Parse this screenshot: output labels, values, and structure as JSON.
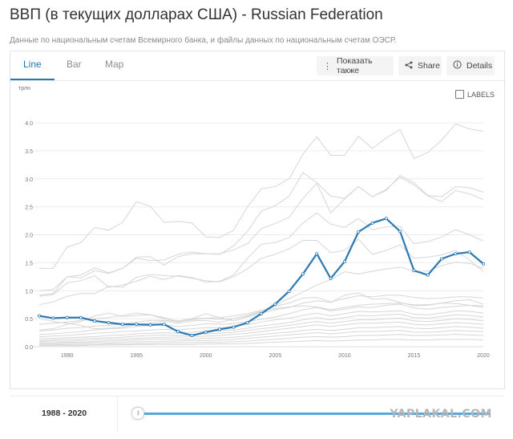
{
  "header": {
    "title": "ВВП (в текущих долларах США) - Russian Federation",
    "subtitle": "Данные по национальным счетам Всемирного банка, и файлы данных по национальным счетам ОЭСР."
  },
  "tabs": [
    {
      "label": "Line",
      "active": true
    },
    {
      "label": "Bar",
      "active": false
    },
    {
      "label": "Map",
      "active": false
    }
  ],
  "toolbar": {
    "show_also_label": "Показать также",
    "share_label": "Share",
    "details_label": "Details"
  },
  "labels_toggle": "LABELS",
  "unit_label": "трлн",
  "range": {
    "label": "1988 - 2020"
  },
  "watermark": "YAPLAKAL.COM",
  "colors": {
    "highlight": "#2a7ab6",
    "background_lines": "#d6d6d6",
    "accent": "#1f77b4",
    "slider": "#5aa8d8"
  },
  "chart_data": {
    "type": "line",
    "title": "ВВП (в текущих долларах США) - Russian Federation",
    "ylabel": "трлн",
    "xlim": [
      1988,
      2020
    ],
    "ylim": [
      0,
      4.0
    ],
    "x_ticks": [
      1990,
      1995,
      2000,
      2005,
      2010,
      2015,
      2020
    ],
    "y_ticks": [
      "0.0",
      "0.5",
      "1.0",
      "1.5",
      "2.0",
      "2.5",
      "3.0",
      "3.5",
      "4.0"
    ],
    "grid": "horizontal",
    "highlight_series": {
      "name": "Russian Federation",
      "x": [
        1988,
        1989,
        1990,
        1991,
        1992,
        1993,
        1994,
        1995,
        1996,
        1997,
        1998,
        1999,
        2000,
        2001,
        2002,
        2003,
        2004,
        2005,
        2006,
        2007,
        2008,
        2009,
        2010,
        2011,
        2012,
        2013,
        2014,
        2015,
        2016,
        2017,
        2018,
        2019,
        2020
      ],
      "values": [
        0.55,
        0.51,
        0.52,
        0.52,
        0.46,
        0.43,
        0.4,
        0.4,
        0.39,
        0.4,
        0.27,
        0.2,
        0.26,
        0.31,
        0.35,
        0.43,
        0.59,
        0.76,
        0.99,
        1.3,
        1.66,
        1.22,
        1.52,
        2.05,
        2.21,
        2.29,
        2.06,
        1.36,
        1.28,
        1.57,
        1.66,
        1.69,
        1.48
      ]
    },
    "background_series": [
      {
        "values": [
          1.4,
          1.4,
          1.78,
          1.86,
          2.13,
          2.08,
          2.22,
          2.59,
          2.51,
          2.22,
          2.24,
          2.21,
          1.96,
          1.95,
          2.08,
          2.5,
          2.82,
          2.86,
          3.0,
          3.44,
          3.75,
          3.42,
          3.42,
          3.76,
          3.54,
          3.73,
          3.88,
          3.36,
          3.47,
          3.69,
          3.98,
          3.89,
          3.85
        ]
      },
      {
        "values": [
          1.0,
          1.02,
          1.25,
          1.28,
          1.41,
          1.32,
          1.4,
          1.6,
          1.61,
          1.46,
          1.61,
          1.66,
          1.66,
          1.65,
          1.8,
          2.06,
          2.42,
          2.52,
          2.69,
          3.11,
          2.93,
          2.69,
          2.65,
          2.86,
          2.68,
          2.79,
          3.06,
          2.93,
          2.7,
          2.68,
          2.86,
          2.84,
          2.76
        ]
      },
      {
        "values": [
          0.92,
          0.95,
          1.25,
          1.23,
          1.36,
          1.31,
          1.4,
          1.58,
          1.54,
          1.55,
          1.65,
          1.69,
          1.66,
          1.66,
          1.73,
          1.84,
          2.11,
          2.2,
          2.31,
          2.65,
          2.92,
          2.39,
          2.64,
          2.86,
          2.68,
          2.81,
          3.03,
          2.89,
          2.69,
          2.59,
          2.79,
          2.73,
          2.63
        ]
      },
      {
        "values": [
          0.9,
          0.93,
          1.14,
          1.18,
          1.27,
          1.06,
          1.1,
          1.17,
          1.26,
          1.2,
          1.27,
          1.24,
          1.15,
          1.17,
          1.28,
          1.58,
          1.83,
          1.86,
          1.95,
          2.21,
          2.39,
          2.19,
          2.13,
          2.29,
          2.09,
          2.14,
          2.15,
          1.84,
          1.88,
          1.96,
          2.09,
          2.0,
          1.89
        ]
      },
      {
        "values": [
          0.75,
          0.8,
          0.9,
          0.95,
          0.95,
          1.08,
          1.06,
          1.24,
          1.29,
          1.27,
          1.26,
          1.22,
          1.18,
          1.16,
          1.25,
          1.39,
          1.58,
          1.65,
          1.75,
          1.9,
          1.9,
          1.68,
          1.72,
          1.92,
          1.65,
          1.72,
          1.82,
          1.58,
          1.6,
          1.64,
          1.72,
          1.55,
          1.34
        ]
      },
      {
        "values": [
          0.51,
          0.45,
          0.42,
          0.38,
          0.32,
          0.33,
          0.35,
          0.4,
          0.42,
          0.46,
          0.42,
          0.46,
          0.47,
          0.43,
          0.5,
          0.56,
          0.64,
          0.74,
          0.86,
          0.98,
          1.1,
          1.2,
          1.34,
          1.3,
          1.35,
          1.39,
          1.42,
          1.35,
          1.35,
          1.45,
          1.51,
          1.49,
          1.4
        ]
      },
      {
        "values": [
          0.4,
          0.42,
          0.44,
          0.47,
          0.5,
          0.52,
          0.56,
          0.6,
          0.57,
          0.5,
          0.46,
          0.5,
          0.51,
          0.49,
          0.5,
          0.55,
          0.62,
          0.72,
          0.78,
          0.87,
          0.88,
          0.8,
          0.86,
          0.91,
          0.89,
          0.92,
          0.92,
          0.88,
          0.86,
          0.87,
          0.89,
          0.89,
          0.87
        ]
      },
      {
        "values": [
          0.3,
          0.32,
          0.4,
          0.45,
          0.55,
          0.6,
          0.54,
          0.56,
          0.57,
          0.52,
          0.44,
          0.5,
          0.59,
          0.52,
          0.46,
          0.53,
          0.6,
          0.66,
          0.7,
          0.78,
          0.82,
          0.79,
          0.92,
          0.96,
          0.85,
          0.86,
          0.79,
          0.73,
          0.74,
          0.78,
          0.77,
          0.74,
          0.73
        ]
      },
      {
        "values": [
          0.28,
          0.3,
          0.33,
          0.34,
          0.37,
          0.38,
          0.41,
          0.44,
          0.47,
          0.47,
          0.45,
          0.48,
          0.51,
          0.52,
          0.55,
          0.59,
          0.65,
          0.68,
          0.71,
          0.73,
          0.71,
          0.66,
          0.7,
          0.74,
          0.76,
          0.77,
          0.78,
          0.75,
          0.75,
          0.78,
          0.82,
          0.84,
          0.76
        ]
      },
      {
        "values": [
          0.22,
          0.23,
          0.25,
          0.27,
          0.3,
          0.32,
          0.33,
          0.36,
          0.38,
          0.39,
          0.36,
          0.38,
          0.41,
          0.4,
          0.41,
          0.45,
          0.49,
          0.53,
          0.59,
          0.66,
          0.7,
          0.64,
          0.67,
          0.71,
          0.7,
          0.74,
          0.76,
          0.69,
          0.67,
          0.7,
          0.72,
          0.74,
          0.7
        ]
      },
      {
        "values": [
          0.18,
          0.19,
          0.2,
          0.22,
          0.24,
          0.25,
          0.27,
          0.28,
          0.3,
          0.31,
          0.3,
          0.32,
          0.34,
          0.34,
          0.36,
          0.4,
          0.44,
          0.48,
          0.51,
          0.56,
          0.6,
          0.55,
          0.59,
          0.63,
          0.62,
          0.63,
          0.64,
          0.58,
          0.57,
          0.6,
          0.64,
          0.63,
          0.6
        ]
      },
      {
        "values": [
          0.14,
          0.15,
          0.16,
          0.17,
          0.18,
          0.2,
          0.21,
          0.23,
          0.24,
          0.25,
          0.24,
          0.26,
          0.28,
          0.28,
          0.3,
          0.33,
          0.37,
          0.4,
          0.43,
          0.48,
          0.52,
          0.48,
          0.52,
          0.56,
          0.55,
          0.57,
          0.58,
          0.52,
          0.51,
          0.54,
          0.57,
          0.56,
          0.53
        ]
      },
      {
        "values": [
          0.11,
          0.12,
          0.13,
          0.14,
          0.15,
          0.16,
          0.17,
          0.19,
          0.2,
          0.21,
          0.2,
          0.22,
          0.23,
          0.24,
          0.26,
          0.29,
          0.32,
          0.35,
          0.38,
          0.42,
          0.45,
          0.42,
          0.45,
          0.48,
          0.48,
          0.5,
          0.51,
          0.46,
          0.45,
          0.47,
          0.5,
          0.49,
          0.46
        ]
      },
      {
        "values": [
          0.09,
          0.1,
          0.1,
          0.11,
          0.12,
          0.13,
          0.14,
          0.15,
          0.16,
          0.17,
          0.17,
          0.18,
          0.19,
          0.2,
          0.22,
          0.24,
          0.27,
          0.3,
          0.33,
          0.36,
          0.39,
          0.36,
          0.39,
          0.42,
          0.42,
          0.43,
          0.44,
          0.4,
          0.39,
          0.41,
          0.43,
          0.42,
          0.4
        ]
      },
      {
        "values": [
          0.07,
          0.07,
          0.08,
          0.08,
          0.09,
          0.1,
          0.11,
          0.12,
          0.13,
          0.14,
          0.13,
          0.14,
          0.15,
          0.16,
          0.17,
          0.19,
          0.22,
          0.24,
          0.26,
          0.29,
          0.31,
          0.29,
          0.31,
          0.34,
          0.34,
          0.35,
          0.36,
          0.33,
          0.32,
          0.34,
          0.36,
          0.35,
          0.33
        ]
      },
      {
        "values": [
          0.05,
          0.05,
          0.06,
          0.06,
          0.07,
          0.07,
          0.08,
          0.09,
          0.09,
          0.1,
          0.1,
          0.11,
          0.11,
          0.12,
          0.13,
          0.15,
          0.17,
          0.19,
          0.21,
          0.23,
          0.25,
          0.23,
          0.25,
          0.27,
          0.27,
          0.28,
          0.29,
          0.26,
          0.26,
          0.27,
          0.29,
          0.28,
          0.27
        ]
      },
      {
        "values": [
          0.03,
          0.03,
          0.04,
          0.04,
          0.04,
          0.05,
          0.05,
          0.06,
          0.06,
          0.07,
          0.07,
          0.07,
          0.08,
          0.08,
          0.09,
          0.1,
          0.12,
          0.13,
          0.15,
          0.17,
          0.18,
          0.17,
          0.18,
          0.2,
          0.2,
          0.21,
          0.22,
          0.2,
          0.2,
          0.21,
          0.22,
          0.21,
          0.2
        ]
      },
      {
        "values": [
          0.02,
          0.02,
          0.02,
          0.02,
          0.03,
          0.03,
          0.03,
          0.04,
          0.04,
          0.04,
          0.04,
          0.04,
          0.05,
          0.05,
          0.05,
          0.06,
          0.07,
          0.08,
          0.09,
          0.1,
          0.11,
          0.1,
          0.11,
          0.12,
          0.12,
          0.13,
          0.13,
          0.12,
          0.12,
          0.13,
          0.13,
          0.13,
          0.12
        ]
      }
    ]
  }
}
